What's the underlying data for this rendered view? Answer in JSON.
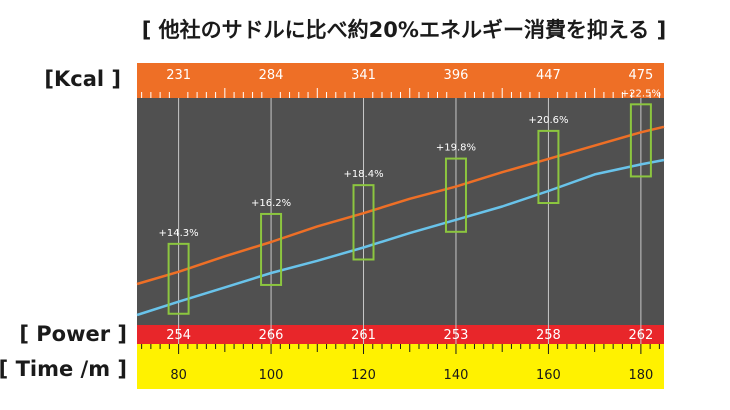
{
  "title": "[ 他社のサドルに比べ約20%エネルギー消費を抑える ]",
  "colors": {
    "kcal_band": "#ee6f26",
    "power_band": "#e8262a",
    "time_band": "#fff200",
    "plot_bg": "#505050",
    "line_orange": "#ee6f26",
    "line_blue": "#69c3ea",
    "box": "#8cc63f"
  },
  "chart_data": {
    "type": "line",
    "xlabel": "[ Time /m ]",
    "xlim": [
      71,
      185
    ],
    "x_ticks": [
      80,
      100,
      120,
      140,
      160,
      180
    ],
    "kcal_label": "[Kcal ]",
    "kcal_values": [
      231,
      284,
      341,
      396,
      447,
      475
    ],
    "power_label": "[ Power ]",
    "power_values": [
      254,
      266,
      261,
      253,
      258,
      262
    ],
    "differences": [
      "+14.3%",
      "+16.2%",
      "+18.4%",
      "+19.8%",
      "+20.6%",
      "+22.5%"
    ],
    "series": [
      {
        "color": "orange",
        "x": [
          71,
          80,
          90,
          100,
          110,
          120,
          130,
          140,
          150,
          160,
          170,
          180,
          185
        ],
        "y": [
          -0.8,
          0.3,
          1.7,
          3.0,
          4.4,
          5.6,
          6.9,
          8.0,
          9.3,
          10.5,
          11.7,
          12.9,
          13.4
        ]
      },
      {
        "color": "blue",
        "x": [
          71,
          80,
          90,
          100,
          110,
          120,
          130,
          140,
          150,
          160,
          170,
          180,
          185
        ],
        "y": [
          -3.6,
          -2.4,
          -1.1,
          0.2,
          1.3,
          2.5,
          3.8,
          5.0,
          6.2,
          7.6,
          9.1,
          10.0,
          10.4
        ]
      }
    ],
    "ylim": [
      -4.5,
      16
    ]
  }
}
